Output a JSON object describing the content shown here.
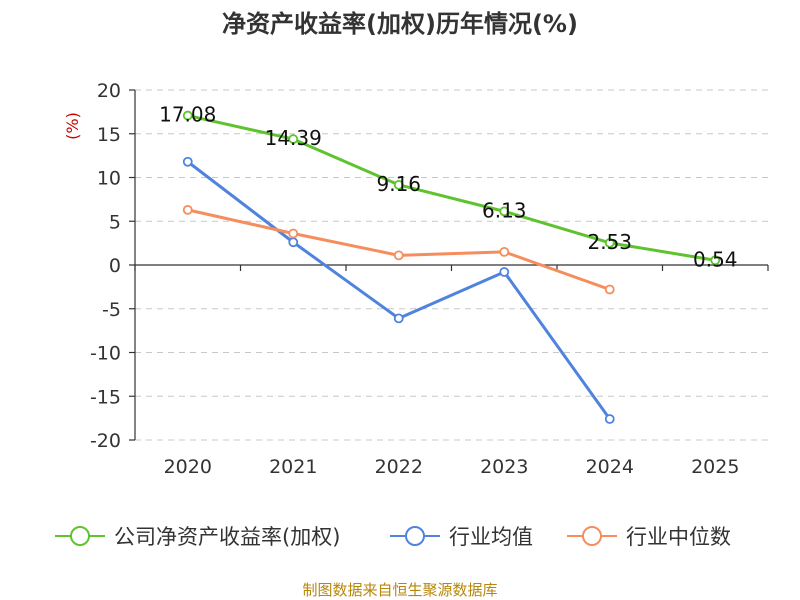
{
  "chart_data": {
    "type": "line",
    "title": "净资产收益率(加权)历年情况(%)",
    "ylabel": "(%)",
    "xlabel": "",
    "categories": [
      "2020",
      "2021",
      "2022",
      "2023",
      "2024",
      "2025"
    ],
    "ylim": [
      -20,
      20
    ],
    "yticks": [
      20,
      15,
      10,
      5,
      0,
      -5,
      -10,
      -15,
      -20
    ],
    "grid": true,
    "legend_position": "bottom",
    "series": [
      {
        "name": "公司净资产收益率(加权)",
        "color": "#5ec32e",
        "values": [
          17.08,
          14.39,
          9.16,
          6.13,
          2.53,
          0.54
        ],
        "labels": [
          "17.08",
          "14.39",
          "9.16",
          "6.13",
          "2.53",
          "0.54"
        ]
      },
      {
        "name": "行业均值",
        "color": "#4f83dd",
        "values": [
          11.8,
          2.6,
          -6.1,
          -0.8,
          -17.6,
          null
        ]
      },
      {
        "name": "行业中位数",
        "color": "#f58d5d",
        "values": [
          6.3,
          3.6,
          1.1,
          1.5,
          -2.8,
          null
        ]
      }
    ]
  },
  "source": "制图数据来自恒生聚源数据库"
}
